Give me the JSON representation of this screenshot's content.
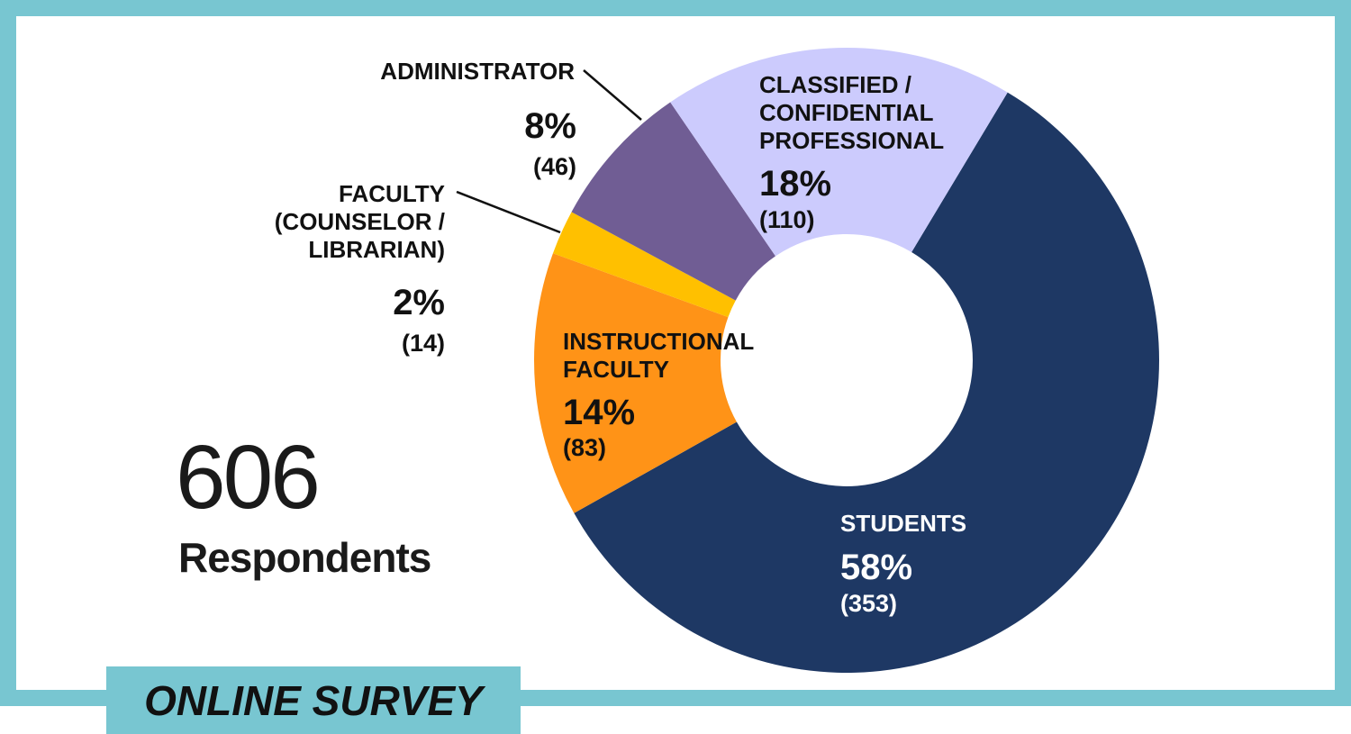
{
  "colors": {
    "frame": "#78c6d1",
    "background": "#ffffff",
    "text": "#111111"
  },
  "summary": {
    "total": "606",
    "total_label": "Respondents"
  },
  "banner": {
    "label": "ONLINE SURVEY"
  },
  "chart_data": {
    "type": "pie",
    "donut": true,
    "total": 606,
    "series": [
      {
        "name": "STUDENTS",
        "label": "STUDENTS",
        "percent_label": "58%",
        "count_label": "(353)",
        "value": 353,
        "color": "#1e3864"
      },
      {
        "name": "INSTRUCTIONAL FACULTY",
        "label": "INSTRUCTIONAL\nFACULTY",
        "percent_label": "14%",
        "count_label": "(83)",
        "value": 83,
        "color": "#ff9317"
      },
      {
        "name": "FACULTY (COUNSELOR / LIBRARIAN)",
        "label": "FACULTY\n(COUNSELOR /\nLIBRARIAN)",
        "percent_label": "2%",
        "count_label": "(14)",
        "value": 14,
        "color": "#ffc000"
      },
      {
        "name": "ADMINISTRATOR",
        "label": "ADMINISTRATOR",
        "percent_label": "8%",
        "count_label": "(46)",
        "value": 46,
        "color": "#705d94"
      },
      {
        "name": "CLASSIFIED / CONFIDENTIAL PROFESSIONAL",
        "label": "CLASSIFIED /\nCONFIDENTIAL\nPROFESSIONAL",
        "percent_label": "18%",
        "count_label": "(110)",
        "value": 110,
        "color": "#cccbfd"
      }
    ]
  }
}
